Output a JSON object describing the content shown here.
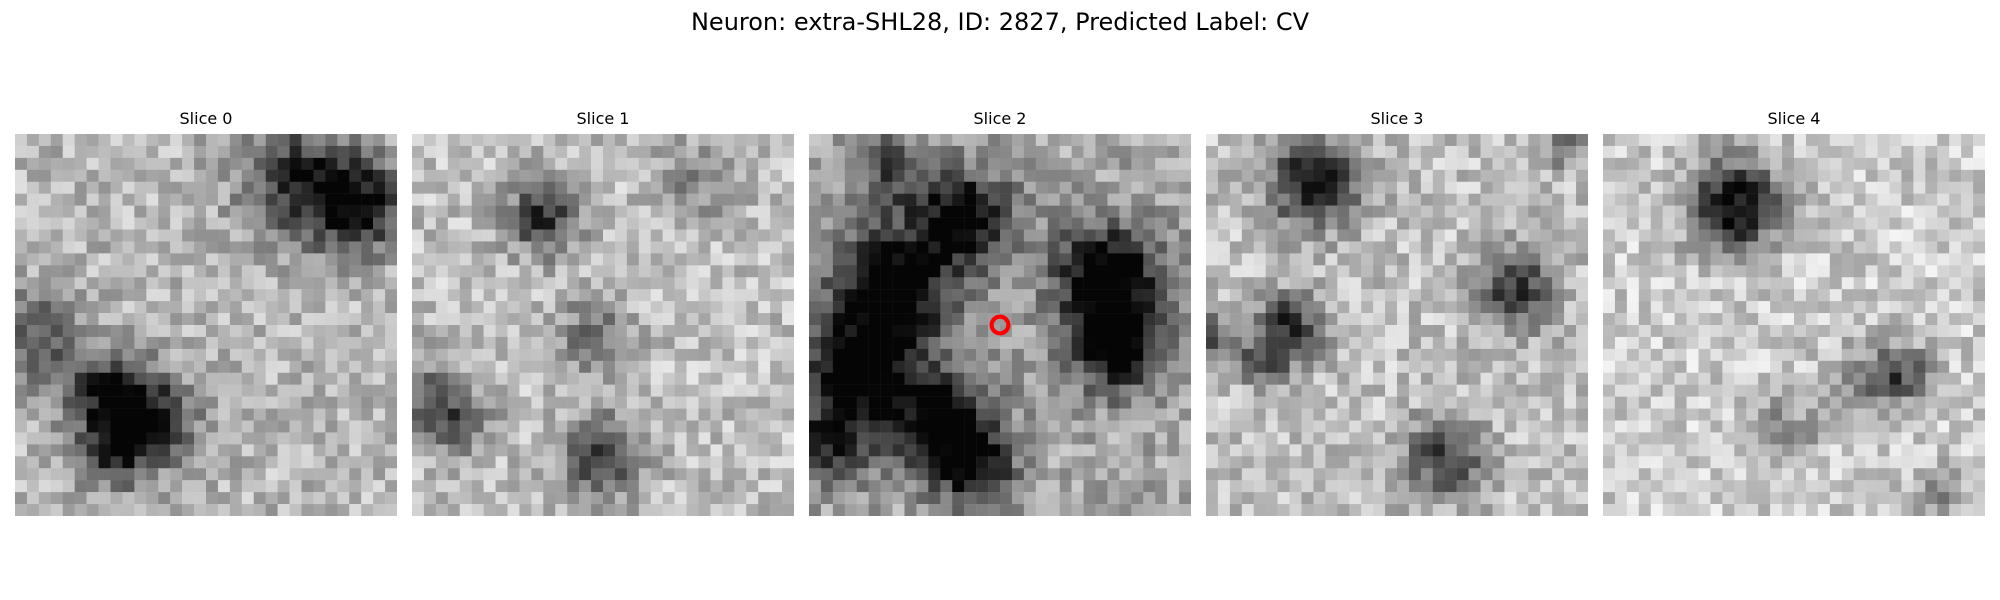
{
  "figure": {
    "title": "Neuron: extra-SHL28, ID: 2827, Predicted Label: CV"
  },
  "slices": [
    {
      "label": "Slice 0"
    },
    {
      "label": "Slice 1"
    },
    {
      "label": "Slice 2"
    },
    {
      "label": "Slice 3"
    },
    {
      "label": "Slice 4"
    }
  ],
  "colors": {
    "marker": "#ff0000",
    "background": "#ffffff"
  }
}
